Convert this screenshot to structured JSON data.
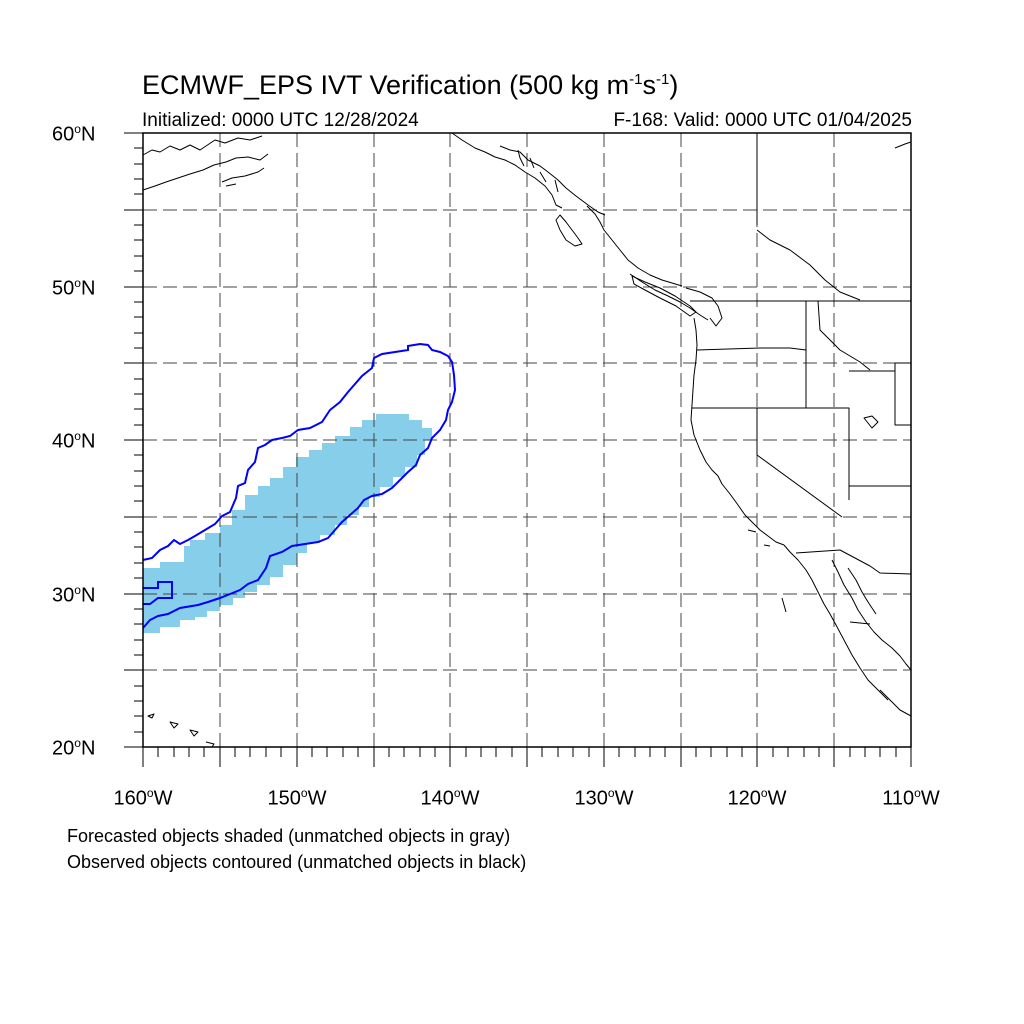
{
  "title": {
    "main_prefix": "ECMWF_EPS IVT Verification (500 kg m",
    "exp1": "-1",
    "mid": "s",
    "exp2": "-1",
    "suffix": ")"
  },
  "subtitle_left": "Initialized: 0000 UTC 12/28/2024",
  "subtitle_right": "F-168: Valid: 0000 UTC 01/04/2025",
  "degree_symbol": "o",
  "lat_labels": [
    {
      "num": "60",
      "hem": "N"
    },
    {
      "num": "50",
      "hem": "N"
    },
    {
      "num": "40",
      "hem": "N"
    },
    {
      "num": "30",
      "hem": "N"
    },
    {
      "num": "20",
      "hem": "N"
    }
  ],
  "lon_labels": [
    {
      "num": "160",
      "hem": "W"
    },
    {
      "num": "150",
      "hem": "W"
    },
    {
      "num": "140",
      "hem": "W"
    },
    {
      "num": "130",
      "hem": "W"
    },
    {
      "num": "120",
      "hem": "W"
    },
    {
      "num": "110",
      "hem": "W"
    }
  ],
  "notes": {
    "forecast": "Forecasted objects shaded (unmatched objects in gray)",
    "observed": "Observed objects contoured (unmatched objects in black)"
  },
  "colors": {
    "forecast_fill": "#87ceeb",
    "observed_contour": "#0000ff",
    "coastline": "#000000",
    "grid": "#444444"
  },
  "map_extent": {
    "lon_min": -160,
    "lon_max": -110,
    "lat_min": 20,
    "lat_max": 60
  }
}
